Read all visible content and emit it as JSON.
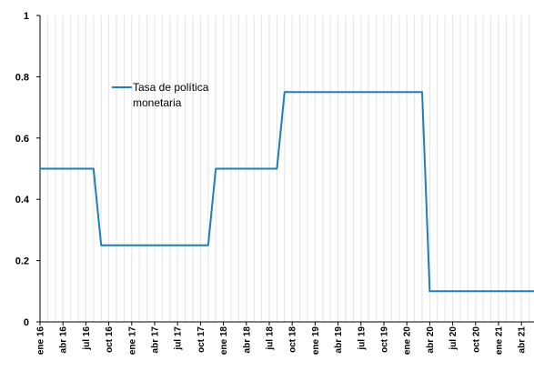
{
  "chart_data": {
    "type": "line",
    "ylim": [
      0,
      1
    ],
    "yticks": [
      0,
      0.2,
      0.4,
      0.6,
      0.8,
      1
    ],
    "ytick_labels": [
      "0",
      "0.2",
      "0.4",
      "0.6",
      "0.8",
      "1"
    ],
    "grid": "vertical",
    "legend_position": "upper-left",
    "colors": {
      "series": "#1f7fb4",
      "grid": "#e3e3e3",
      "axis": "#000000"
    },
    "xtick_labels": [
      "ene 16",
      "abr 16",
      "jul 16",
      "oct 16",
      "ene 17",
      "abr 17",
      "jul 17",
      "oct 17",
      "ene 18",
      "abr 18",
      "jul 18",
      "oct 18",
      "ene 19",
      "abr 19",
      "jul 19",
      "oct 19",
      "ene 20",
      "abr 20",
      "jul 20",
      "oct 20",
      "ene 21",
      "abr 21"
    ],
    "x_range": [
      "2016-01",
      "2021-06"
    ],
    "series": [
      {
        "name": "Tasa de política monetaria",
        "steps": [
          {
            "from": "2016-01",
            "value": 0.5
          },
          {
            "from": "2016-08",
            "value": 0.25
          },
          {
            "from": "2017-11",
            "value": 0.5
          },
          {
            "from": "2018-08",
            "value": 0.75
          },
          {
            "from": "2020-03",
            "value": 0.1
          }
        ]
      }
    ]
  }
}
